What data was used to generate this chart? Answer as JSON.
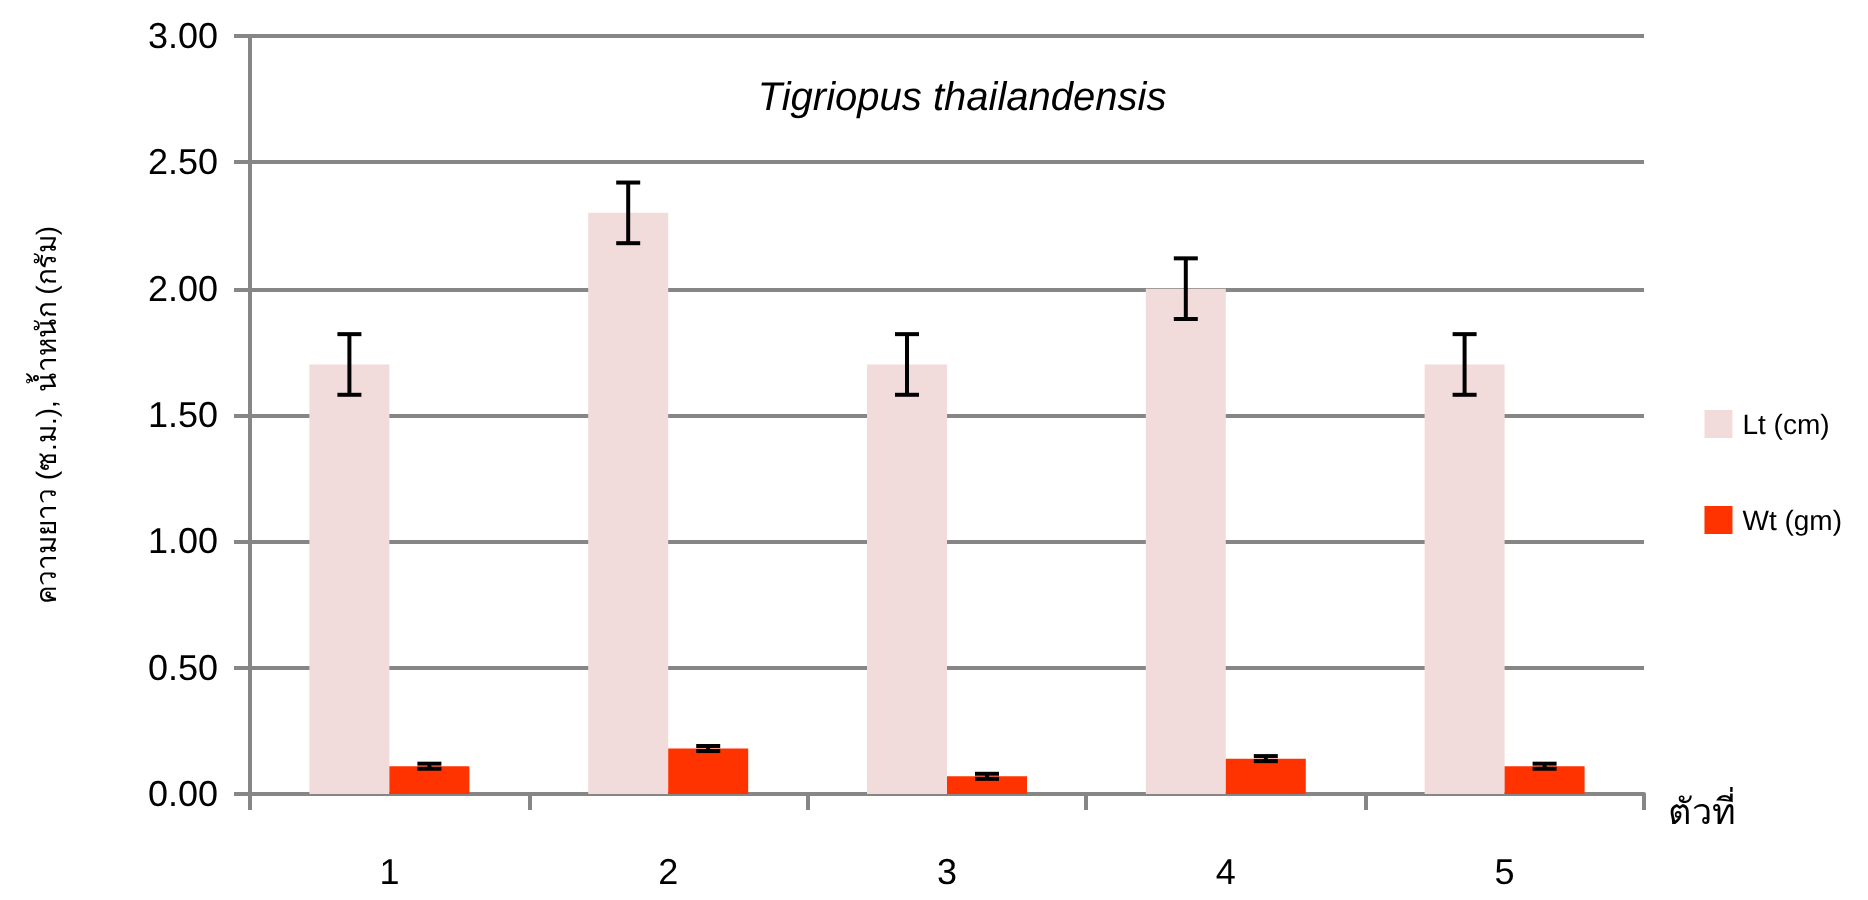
{
  "chart_data": {
    "type": "bar",
    "title": "Tigriopus thailandensis",
    "xlabel": "ตัวที่",
    "ylabel": "ความยาว (ซ.ม.), น้ำหนัก (กรัม)",
    "categories": [
      "1",
      "2",
      "3",
      "4",
      "5"
    ],
    "series": [
      {
        "name": "Lt (cm)",
        "color": "#f2dcdb",
        "values": [
          1.7,
          2.3,
          1.7,
          2.0,
          1.7
        ],
        "errors": [
          0.12,
          0.12,
          0.12,
          0.12,
          0.12
        ]
      },
      {
        "name": "Wt (gm)",
        "color": "#ff3300",
        "values": [
          0.11,
          0.18,
          0.07,
          0.14,
          0.11
        ],
        "errors": [
          0.01,
          0.01,
          0.01,
          0.01,
          0.01
        ]
      }
    ],
    "ylim": [
      0,
      3
    ],
    "yticks": [
      {
        "value": 0,
        "label": "0.00"
      },
      {
        "value": 0.5,
        "label": "0.50"
      },
      {
        "value": 1,
        "label": "1.00"
      },
      {
        "value": 1.5,
        "label": "1.50"
      },
      {
        "value": 2,
        "label": "2.00"
      },
      {
        "value": 2.5,
        "label": "2.50"
      },
      {
        "value": 3,
        "label": "3.00"
      }
    ],
    "grid": "y",
    "legend": "right"
  }
}
